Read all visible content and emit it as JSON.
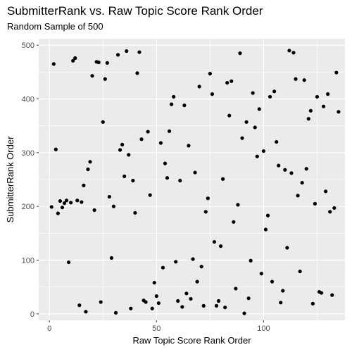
{
  "chart_data": {
    "type": "scatter",
    "title": "SubmitterRank vs. Raw Topic Score Rank Order",
    "subtitle": "Random Sample of 500",
    "xlabel": "Raw Topic Score Rank Order",
    "ylabel": "SubmitterRank Order",
    "xlim": [
      -5,
      138
    ],
    "ylim": [
      -12,
      512
    ],
    "x_ticks": [
      0,
      50,
      100
    ],
    "y_ticks": [
      0,
      100,
      200,
      300,
      400,
      500
    ],
    "x_tick_labels": [
      "0",
      "50",
      "100"
    ],
    "y_tick_labels": [
      "0",
      "100",
      "200",
      "300",
      "400",
      "500"
    ],
    "grid": true,
    "panel_background": "#ebebeb",
    "grid_color": "#ffffff",
    "point_color": "#000000",
    "points": [
      {
        "x": 1,
        "y": 199
      },
      {
        "x": 2,
        "y": 465
      },
      {
        "x": 3,
        "y": 306
      },
      {
        "x": 4,
        "y": 187
      },
      {
        "x": 5,
        "y": 210
      },
      {
        "x": 6,
        "y": 198
      },
      {
        "x": 7,
        "y": 206
      },
      {
        "x": 8,
        "y": 211
      },
      {
        "x": 9,
        "y": 96
      },
      {
        "x": 10,
        "y": 207
      },
      {
        "x": 11,
        "y": 471
      },
      {
        "x": 12,
        "y": 476
      },
      {
        "x": 13,
        "y": 211
      },
      {
        "x": 14,
        "y": 16
      },
      {
        "x": 15,
        "y": 208
      },
      {
        "x": 16,
        "y": 239
      },
      {
        "x": 17,
        "y": 4
      },
      {
        "x": 18,
        "y": 269
      },
      {
        "x": 19,
        "y": 283
      },
      {
        "x": 20,
        "y": 443
      },
      {
        "x": 21,
        "y": 193
      },
      {
        "x": 22,
        "y": 469
      },
      {
        "x": 23,
        "y": 468
      },
      {
        "x": 24,
        "y": 22
      },
      {
        "x": 25,
        "y": 357
      },
      {
        "x": 26,
        "y": 437
      },
      {
        "x": 27,
        "y": 467
      },
      {
        "x": 28,
        "y": 218
      },
      {
        "x": 29,
        "y": 104
      },
      {
        "x": 30,
        "y": 200
      },
      {
        "x": 31,
        "y": 2
      },
      {
        "x": 32,
        "y": 482
      },
      {
        "x": 33,
        "y": 305
      },
      {
        "x": 34,
        "y": 315
      },
      {
        "x": 35,
        "y": 256
      },
      {
        "x": 36,
        "y": 489
      },
      {
        "x": 37,
        "y": 296
      },
      {
        "x": 38,
        "y": 10
      },
      {
        "x": 39,
        "y": 248
      },
      {
        "x": 40,
        "y": 188
      },
      {
        "x": 41,
        "y": 448
      },
      {
        "x": 42,
        "y": 487
      },
      {
        "x": 43,
        "y": 325
      },
      {
        "x": 44,
        "y": 25
      },
      {
        "x": 45,
        "y": 22
      },
      {
        "x": 46,
        "y": 339
      },
      {
        "x": 47,
        "y": 221
      },
      {
        "x": 48,
        "y": 10
      },
      {
        "x": 49,
        "y": 58
      },
      {
        "x": 50,
        "y": 33
      },
      {
        "x": 51,
        "y": 20
      },
      {
        "x": 52,
        "y": 318
      },
      {
        "x": 53,
        "y": 86
      },
      {
        "x": 54,
        "y": 280
      },
      {
        "x": 55,
        "y": 253
      },
      {
        "x": 56,
        "y": 340
      },
      {
        "x": 57,
        "y": 390
      },
      {
        "x": 58,
        "y": 404
      },
      {
        "x": 59,
        "y": 97
      },
      {
        "x": 60,
        "y": 24
      },
      {
        "x": 61,
        "y": 248
      },
      {
        "x": 62,
        "y": 13
      },
      {
        "x": 63,
        "y": 388
      },
      {
        "x": 64,
        "y": 38
      },
      {
        "x": 65,
        "y": 313
      },
      {
        "x": 66,
        "y": 28
      },
      {
        "x": 67,
        "y": 102
      },
      {
        "x": 68,
        "y": 263
      },
      {
        "x": 69,
        "y": 60
      },
      {
        "x": 70,
        "y": 423
      },
      {
        "x": 71,
        "y": 88
      },
      {
        "x": 72,
        "y": 15
      },
      {
        "x": 73,
        "y": 190
      },
      {
        "x": 74,
        "y": 215
      },
      {
        "x": 75,
        "y": 447
      },
      {
        "x": 76,
        "y": 409
      },
      {
        "x": 77,
        "y": 134
      },
      {
        "x": 78,
        "y": 15
      },
      {
        "x": 79,
        "y": 24
      },
      {
        "x": 80,
        "y": 126
      },
      {
        "x": 81,
        "y": 251
      },
      {
        "x": 82,
        "y": 12
      },
      {
        "x": 83,
        "y": 430
      },
      {
        "x": 84,
        "y": 369
      },
      {
        "x": 85,
        "y": 433
      },
      {
        "x": 86,
        "y": 171
      },
      {
        "x": 87,
        "y": 47
      },
      {
        "x": 88,
        "y": 203
      },
      {
        "x": 89,
        "y": 485
      },
      {
        "x": 90,
        "y": 327
      },
      {
        "x": 91,
        "y": 1
      },
      {
        "x": 92,
        "y": 357
      },
      {
        "x": 93,
        "y": 29
      },
      {
        "x": 94,
        "y": 99
      },
      {
        "x": 95,
        "y": 411
      },
      {
        "x": 96,
        "y": 347
      },
      {
        "x": 97,
        "y": 293
      },
      {
        "x": 98,
        "y": 381
      },
      {
        "x": 99,
        "y": 75
      },
      {
        "x": 100,
        "y": 303
      },
      {
        "x": 101,
        "y": 157
      },
      {
        "x": 102,
        "y": 183
      },
      {
        "x": 103,
        "y": 404
      },
      {
        "x": 104,
        "y": 60
      },
      {
        "x": 105,
        "y": 414
      },
      {
        "x": 106,
        "y": 320
      },
      {
        "x": 107,
        "y": 276
      },
      {
        "x": 108,
        "y": 21
      },
      {
        "x": 109,
        "y": 43
      },
      {
        "x": 110,
        "y": 268
      },
      {
        "x": 111,
        "y": 123
      },
      {
        "x": 112,
        "y": 490
      },
      {
        "x": 113,
        "y": 262
      },
      {
        "x": 114,
        "y": 486
      },
      {
        "x": 115,
        "y": 437
      },
      {
        "x": 116,
        "y": 220
      },
      {
        "x": 117,
        "y": 79
      },
      {
        "x": 118,
        "y": 244
      },
      {
        "x": 119,
        "y": 435
      },
      {
        "x": 120,
        "y": 270
      },
      {
        "x": 121,
        "y": 363
      },
      {
        "x": 122,
        "y": 378
      },
      {
        "x": 123,
        "y": 19
      },
      {
        "x": 124,
        "y": 205
      },
      {
        "x": 125,
        "y": 404
      },
      {
        "x": 126,
        "y": 41
      },
      {
        "x": 127,
        "y": 39
      },
      {
        "x": 128,
        "y": 386
      },
      {
        "x": 129,
        "y": 228
      },
      {
        "x": 130,
        "y": 409
      },
      {
        "x": 131,
        "y": 190
      },
      {
        "x": 132,
        "y": 35
      },
      {
        "x": 133,
        "y": 197
      },
      {
        "x": 134,
        "y": 449
      },
      {
        "x": 135,
        "y": 376
      }
    ]
  }
}
